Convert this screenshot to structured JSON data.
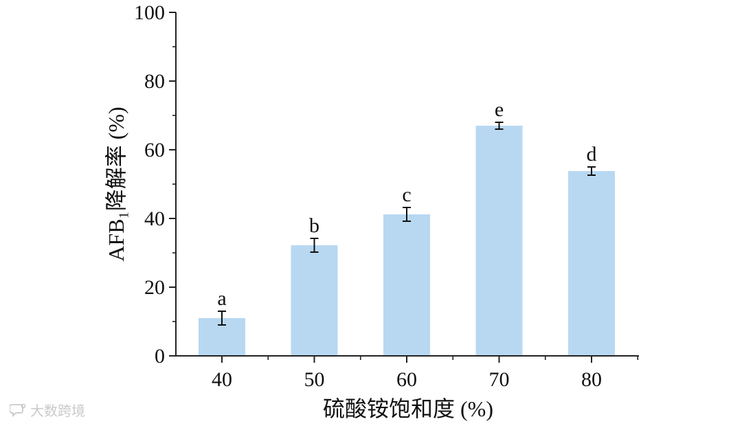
{
  "chart_data": {
    "type": "bar",
    "categories": [
      "40",
      "50",
      "60",
      "70",
      "80"
    ],
    "values": [
      11,
      32.2,
      41.2,
      67,
      53.8
    ],
    "errors": [
      2,
      2,
      2,
      1,
      1.2
    ],
    "significance_letters": [
      "a",
      "b",
      "c",
      "e",
      "d"
    ],
    "xlabel": "硫酸铵饱和度 (%)",
    "ylabel": "AFB₁降解率 (%)",
    "ylim": [
      0,
      100
    ],
    "yticks": [
      0,
      20,
      40,
      60,
      80,
      100
    ],
    "bar_color": "#b8d8f2",
    "grid": false,
    "legend": "none"
  },
  "watermark": {
    "text": "大数跨境",
    "icon": "chat-bubble-icon"
  }
}
